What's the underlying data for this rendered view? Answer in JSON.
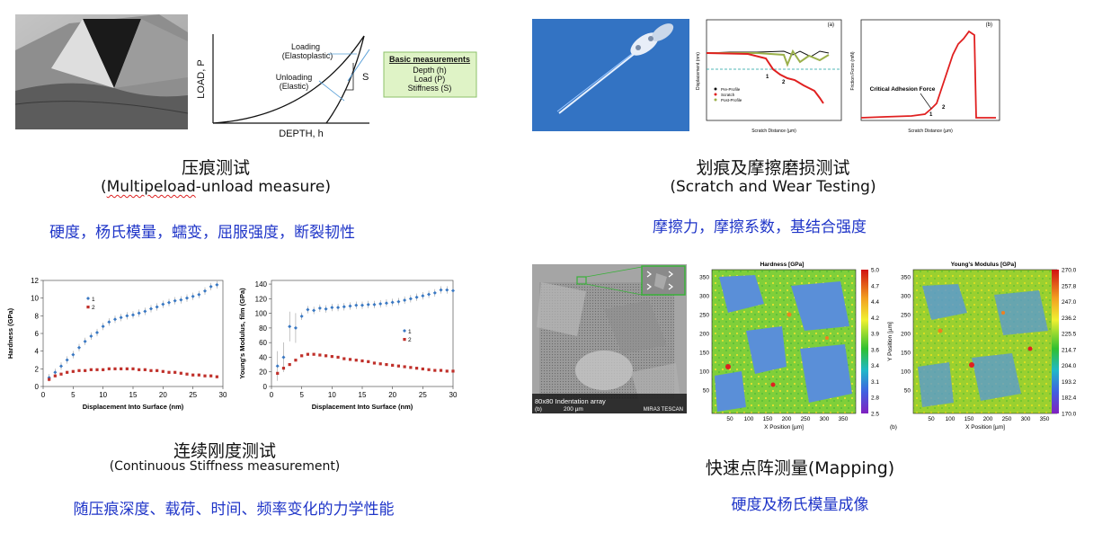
{
  "panels": {
    "indentation": {
      "title": "压痕测试",
      "subtitle_prefix": "(",
      "subtitle_word": "Multipeload",
      "subtitle_rest": "-unload measure)",
      "properties": "硬度，杨氏模量，蠕变，屈服强度，断裂韧性",
      "diagram": {
        "y_axis": "LOAD, P",
        "x_axis": "DEPTH, h",
        "loading_label": "Loading",
        "loading_sub": "(Elastoplastic)",
        "unloading_label": "Unloading",
        "unloading_sub": "(Elastic)",
        "s_label": "S",
        "box_title": "Basic measurements",
        "box_items": [
          "Depth (h)",
          "Load (P)",
          "Stiffness (S)"
        ]
      }
    },
    "scratch": {
      "title": "划痕及摩擦磨损测试",
      "subtitle": "(Scratch and Wear Testing)",
      "properties": "摩擦力，摩擦系数，基结合强度",
      "chart_a": {
        "tag": "(a)",
        "ylabel": "Displacement (nm)",
        "xlabel": "Scratch Distance (µm)",
        "legend": [
          "Pre-Profile",
          "Scratch",
          "Post-Profile"
        ],
        "markers": [
          "1",
          "2"
        ]
      },
      "chart_b": {
        "tag": "(b)",
        "ylabel": "Friction Force (mN)",
        "xlabel": "Scratch Distance (µm)",
        "annotation": "Critical Adhesion Force",
        "markers": [
          "1",
          "2"
        ]
      }
    },
    "csm": {
      "title": "连续刚度测试",
      "subtitle": "(Continuous Stiffness measurement)",
      "properties": "随压痕深度、载荷、时间、频率变化的力学性能",
      "hardness_chart": {
        "ylabel": "Hardness (GPa)",
        "xlabel": "Displacement Into Surface (nm)",
        "legend": [
          "1",
          "2"
        ],
        "y_ticks": [
          "0",
          "2",
          "4",
          "6",
          "8",
          "10",
          "12"
        ],
        "x_ticks": [
          "0",
          "5",
          "10",
          "15",
          "20",
          "25",
          "30"
        ]
      },
      "modulus_chart": {
        "ylabel": "Young's Modulus, film (GPa)",
        "xlabel": "Displacement Into Surface (nm)",
        "legend": [
          "1",
          "2"
        ],
        "y_ticks": [
          "0",
          "20",
          "40",
          "60",
          "80",
          "100",
          "120",
          "140"
        ],
        "x_ticks": [
          "0",
          "5",
          "10",
          "15",
          "20",
          "25",
          "30"
        ]
      }
    },
    "mapping": {
      "title": "快速点阵测量(Mapping)",
      "properties": "硬度及杨氏模量成像",
      "sem_label": "80x80 Indentation array",
      "sem_scale": "200 µm",
      "sem_brand": "MIRA3 TESCAN",
      "sem_tag": "(b)",
      "hardness_map": {
        "title": "Hardness [GPa]",
        "xlabel": "X Position [µm]",
        "scale": [
          "5.0",
          "4.7",
          "4.4",
          "4.2",
          "3.9",
          "3.6",
          "3.4",
          "3.1",
          "2.8",
          "2.5"
        ],
        "y_ticks": [
          "350",
          "300",
          "250",
          "200",
          "150",
          "100",
          "50"
        ],
        "x_ticks": [
          "50",
          "100",
          "150",
          "200",
          "250",
          "300",
          "350"
        ]
      },
      "modulus_map": {
        "title": "Young's Modulus [GPa]",
        "ylabel": "Y Position [µm]",
        "xlabel": "X Position [µm]",
        "tag": "(b)",
        "scale": [
          "270.0",
          "257.8",
          "247.0",
          "236.2",
          "225.5",
          "214.7",
          "204.0",
          "193.2",
          "182.4",
          "170.0"
        ],
        "y_ticks": [
          "350",
          "300",
          "250",
          "200",
          "150",
          "100",
          "50"
        ],
        "x_ticks": [
          "50",
          "100",
          "150",
          "200",
          "250",
          "300",
          "350"
        ]
      }
    }
  },
  "chart_data": [
    {
      "type": "scatter",
      "title": "",
      "xlabel": "Displacement Into Surface (nm)",
      "ylabel": "Hardness (GPa)",
      "xlim": [
        0,
        30
      ],
      "ylim": [
        0,
        12
      ],
      "series": [
        {
          "name": "1",
          "x": [
            1,
            2,
            3,
            4,
            5,
            6,
            7,
            8,
            9,
            10,
            11,
            12,
            13,
            14,
            15,
            16,
            17,
            18,
            19,
            20,
            21,
            22,
            23,
            24,
            25,
            26,
            27,
            28,
            29
          ],
          "values": [
            1.0,
            1.6,
            2.3,
            3.0,
            3.6,
            4.4,
            5.1,
            5.7,
            6.1,
            6.8,
            7.3,
            7.6,
            7.8,
            8.0,
            8.1,
            8.3,
            8.5,
            8.8,
            9.0,
            9.3,
            9.5,
            9.7,
            9.8,
            10.0,
            10.2,
            10.4,
            10.8,
            11.3,
            11.5
          ]
        },
        {
          "name": "2",
          "x": [
            1,
            2,
            3,
            4,
            5,
            6,
            7,
            8,
            9,
            10,
            11,
            12,
            13,
            14,
            15,
            16,
            17,
            18,
            19,
            20,
            21,
            22,
            23,
            24,
            25,
            26,
            27,
            28,
            29
          ],
          "values": [
            0.8,
            1.2,
            1.4,
            1.6,
            1.7,
            1.8,
            1.8,
            1.9,
            1.9,
            1.9,
            2.0,
            2.0,
            2.0,
            2.0,
            2.0,
            1.9,
            1.9,
            1.8,
            1.8,
            1.7,
            1.6,
            1.6,
            1.5,
            1.4,
            1.3,
            1.3,
            1.2,
            1.2,
            1.1
          ]
        }
      ]
    },
    {
      "type": "scatter",
      "title": "",
      "xlabel": "Displacement Into Surface (nm)",
      "ylabel": "Young's Modulus, film (GPa)",
      "xlim": [
        0,
        30
      ],
      "ylim": [
        0,
        145
      ],
      "series": [
        {
          "name": "1",
          "x": [
            1,
            2,
            3,
            4,
            5,
            6,
            7,
            8,
            9,
            10,
            11,
            12,
            13,
            14,
            15,
            16,
            17,
            18,
            19,
            20,
            21,
            22,
            23,
            24,
            25,
            26,
            27,
            28,
            29,
            30
          ],
          "values": [
            28,
            40,
            82,
            80,
            96,
            105,
            104,
            107,
            106,
            108,
            108,
            109,
            110,
            111,
            111,
            112,
            112,
            113,
            114,
            115,
            116,
            118,
            120,
            122,
            124,
            126,
            128,
            132,
            132,
            131
          ]
        },
        {
          "name": "2",
          "x": [
            1,
            2,
            3,
            4,
            5,
            6,
            7,
            8,
            9,
            10,
            11,
            12,
            13,
            14,
            15,
            16,
            17,
            18,
            19,
            20,
            21,
            22,
            23,
            24,
            25,
            26,
            27,
            28,
            29,
            30
          ],
          "values": [
            18,
            25,
            30,
            36,
            42,
            44,
            44,
            43,
            42,
            41,
            40,
            38,
            37,
            36,
            35,
            34,
            32,
            31,
            30,
            29,
            28,
            27,
            26,
            25,
            24,
            23,
            22,
            22,
            21,
            21
          ]
        }
      ]
    }
  ]
}
